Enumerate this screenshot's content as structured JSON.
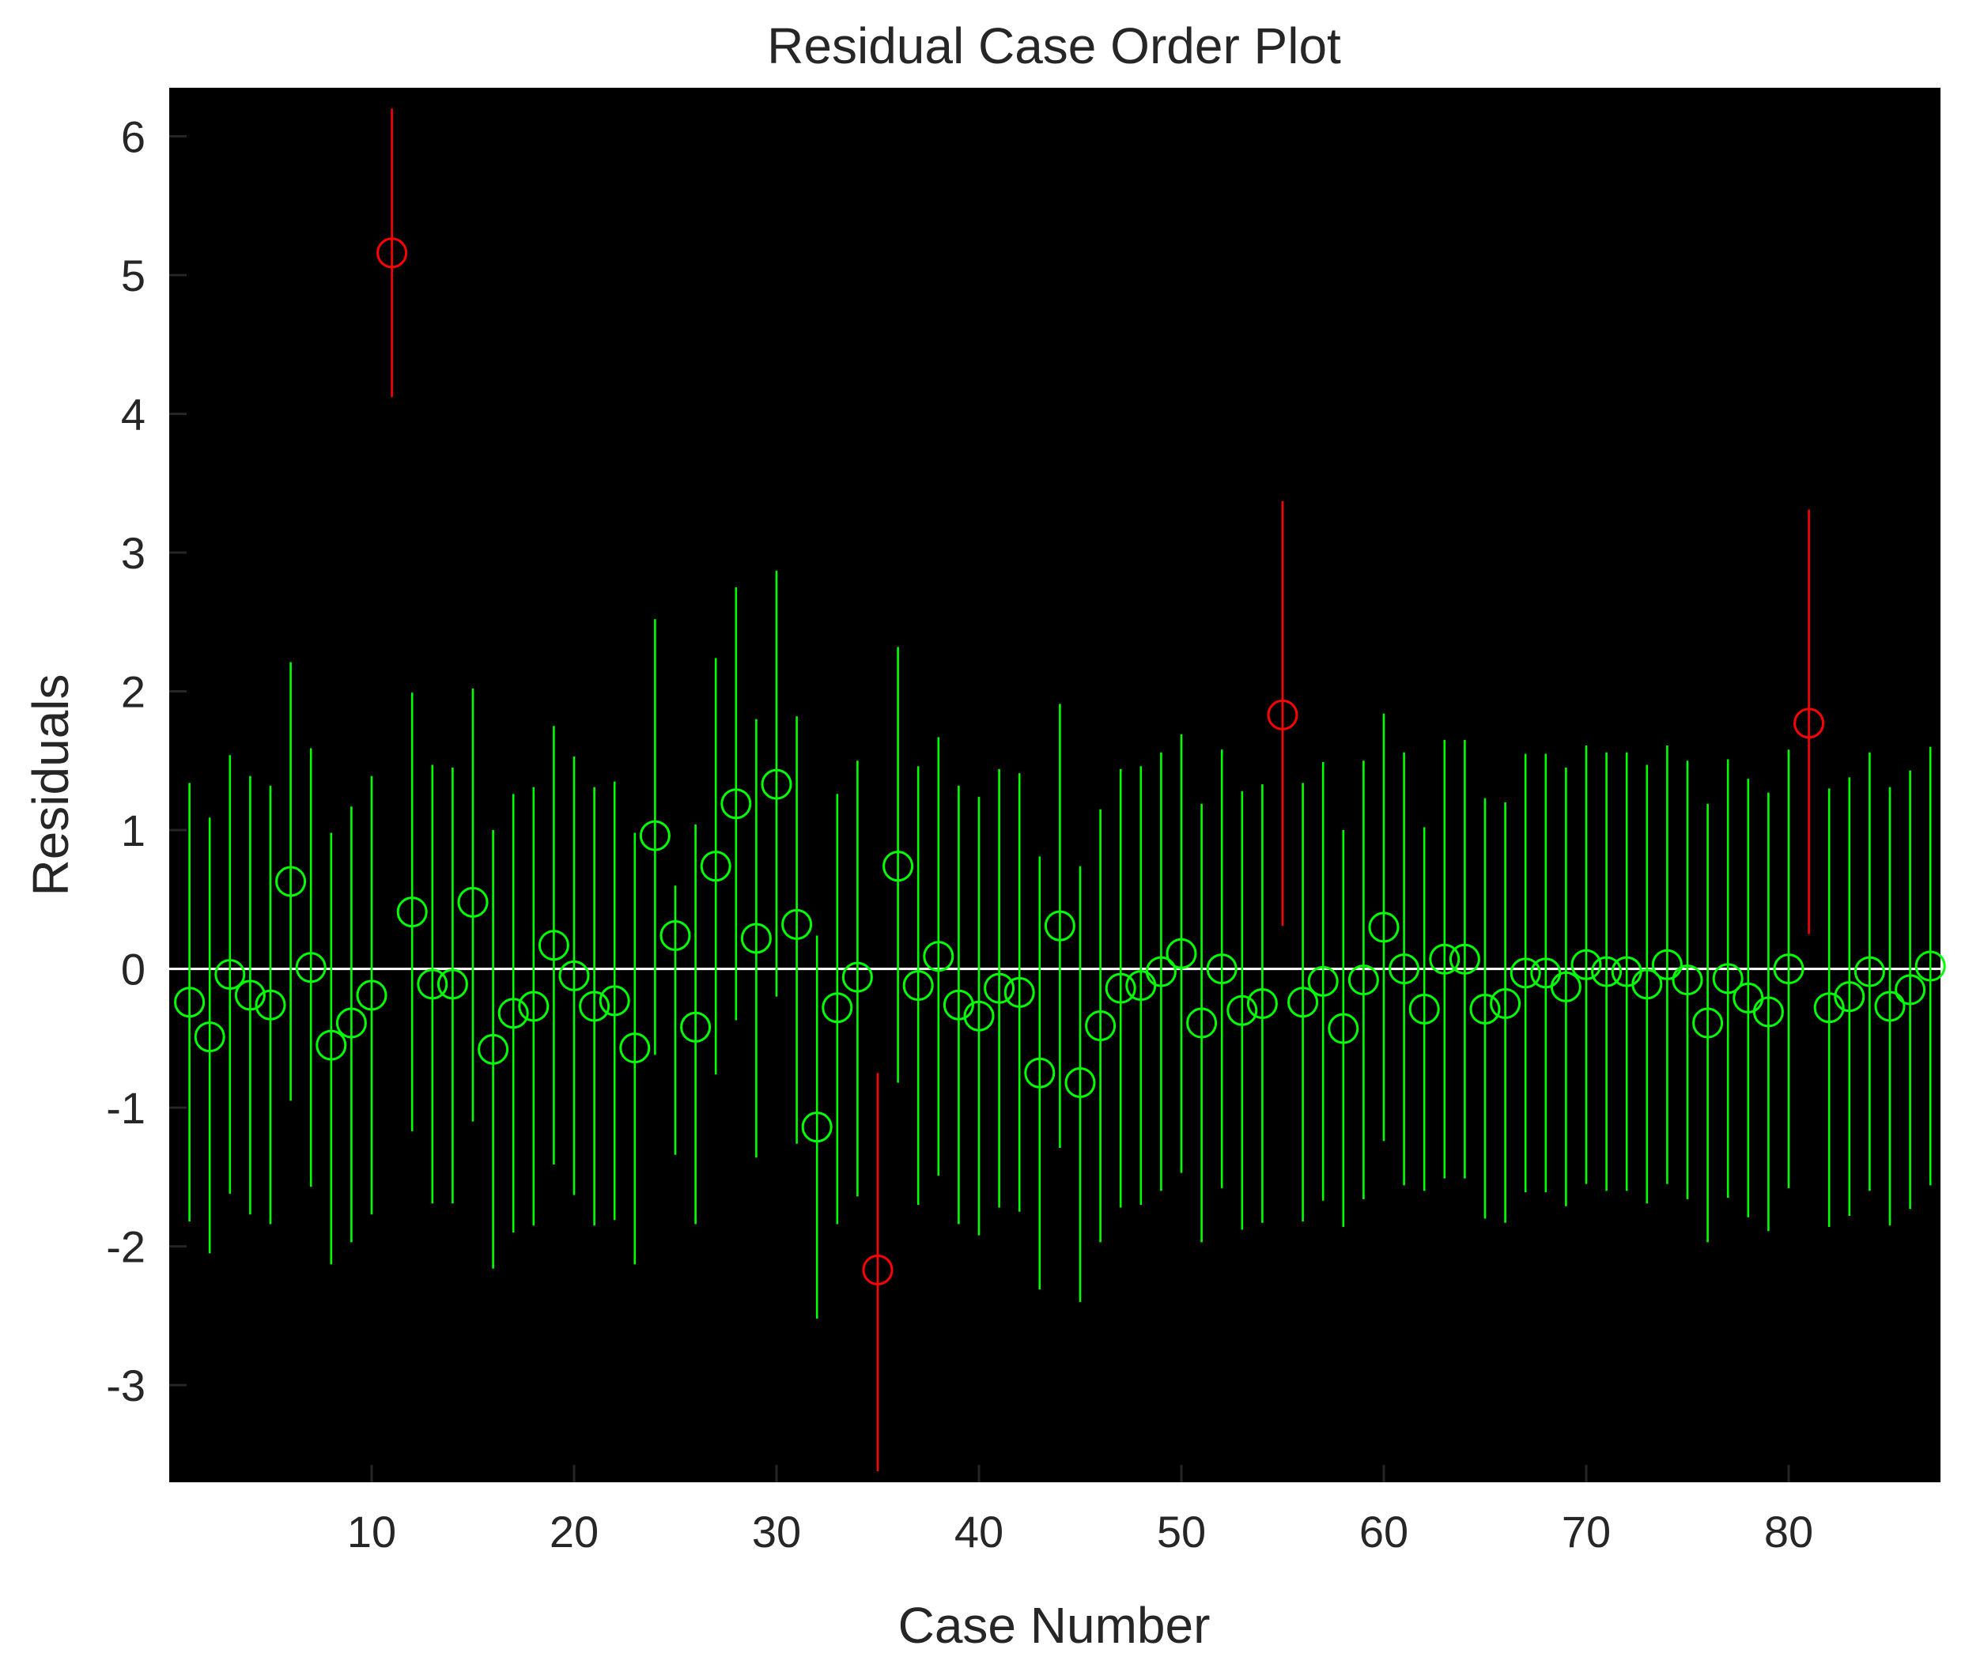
{
  "chart_data": {
    "type": "scatter",
    "title": "Residual Case Order Plot",
    "xlabel": "Case Number",
    "ylabel": "Residuals",
    "xlim": [
      0,
      87.5
    ],
    "ylim": [
      -3.7,
      6.35
    ],
    "xticks": [
      10,
      20,
      30,
      40,
      50,
      60,
      70,
      80
    ],
    "yticks": [
      -3,
      -2,
      -1,
      0,
      1,
      2,
      3,
      4,
      5,
      6
    ],
    "grid": false,
    "background": "#000000",
    "zero_line_color": "#ffffff",
    "normal_color": "#00ff00",
    "outlier_color": "#ff0000",
    "points": [
      {
        "x": 1,
        "y": -0.24,
        "lower": -1.82,
        "upper": 1.34
      },
      {
        "x": 2,
        "y": -0.49,
        "lower": -2.05,
        "upper": 1.09
      },
      {
        "x": 3,
        "y": -0.04,
        "lower": -1.62,
        "upper": 1.54
      },
      {
        "x": 4,
        "y": -0.19,
        "lower": -1.77,
        "upper": 1.39
      },
      {
        "x": 5,
        "y": -0.26,
        "lower": -1.84,
        "upper": 1.32
      },
      {
        "x": 6,
        "y": 0.63,
        "lower": -0.95,
        "upper": 2.21
      },
      {
        "x": 7,
        "y": 0.01,
        "lower": -1.57,
        "upper": 1.59
      },
      {
        "x": 8,
        "y": -0.55,
        "lower": -2.13,
        "upper": 0.98
      },
      {
        "x": 9,
        "y": -0.39,
        "lower": -1.97,
        "upper": 1.17
      },
      {
        "x": 10,
        "y": -0.19,
        "lower": -1.77,
        "upper": 1.39
      },
      {
        "x": 11,
        "y": 5.16,
        "lower": 4.12,
        "upper": 6.2,
        "outlier": true
      },
      {
        "x": 12,
        "y": 0.41,
        "lower": -1.17,
        "upper": 1.99
      },
      {
        "x": 13,
        "y": -0.11,
        "lower": -1.69,
        "upper": 1.47
      },
      {
        "x": 14,
        "y": -0.11,
        "lower": -1.69,
        "upper": 1.45
      },
      {
        "x": 15,
        "y": 0.48,
        "lower": -1.1,
        "upper": 2.02
      },
      {
        "x": 16,
        "y": -0.58,
        "lower": -2.16,
        "upper": 1.0
      },
      {
        "x": 17,
        "y": -0.32,
        "lower": -1.9,
        "upper": 1.26
      },
      {
        "x": 18,
        "y": -0.27,
        "lower": -1.85,
        "upper": 1.31
      },
      {
        "x": 19,
        "y": 0.17,
        "lower": -1.41,
        "upper": 1.75
      },
      {
        "x": 20,
        "y": -0.05,
        "lower": -1.63,
        "upper": 1.53
      },
      {
        "x": 21,
        "y": -0.27,
        "lower": -1.85,
        "upper": 1.31
      },
      {
        "x": 22,
        "y": -0.23,
        "lower": -1.81,
        "upper": 1.35
      },
      {
        "x": 23,
        "y": -0.57,
        "lower": -2.13,
        "upper": 0.98
      },
      {
        "x": 24,
        "y": 0.96,
        "lower": -0.62,
        "upper": 2.52
      },
      {
        "x": 25,
        "y": 0.24,
        "lower": -1.34,
        "upper": 0.6
      },
      {
        "x": 26,
        "y": -0.42,
        "lower": -1.84,
        "upper": 1.04
      },
      {
        "x": 27,
        "y": 0.74,
        "lower": -0.76,
        "upper": 2.24
      },
      {
        "x": 28,
        "y": 1.19,
        "lower": -0.37,
        "upper": 2.75
      },
      {
        "x": 29,
        "y": 0.22,
        "lower": -1.36,
        "upper": 1.8
      },
      {
        "x": 30,
        "y": 1.33,
        "lower": -0.2,
        "upper": 2.87
      },
      {
        "x": 31,
        "y": 0.32,
        "lower": -1.26,
        "upper": 1.82
      },
      {
        "x": 32,
        "y": -1.14,
        "lower": -2.52,
        "upper": 0.24
      },
      {
        "x": 33,
        "y": -0.28,
        "lower": -1.84,
        "upper": 1.26
      },
      {
        "x": 34,
        "y": -0.06,
        "lower": -1.64,
        "upper": 1.5
      },
      {
        "x": 35,
        "y": -2.17,
        "lower": -3.62,
        "upper": -0.75,
        "outlier": true
      },
      {
        "x": 36,
        "y": 0.74,
        "lower": -0.82,
        "upper": 2.32
      },
      {
        "x": 37,
        "y": -0.12,
        "lower": -1.7,
        "upper": 1.46
      },
      {
        "x": 38,
        "y": 0.09,
        "lower": -1.49,
        "upper": 1.67
      },
      {
        "x": 39,
        "y": -0.26,
        "lower": -1.84,
        "upper": 1.32
      },
      {
        "x": 40,
        "y": -0.34,
        "lower": -1.92,
        "upper": 1.24
      },
      {
        "x": 41,
        "y": -0.14,
        "lower": -1.72,
        "upper": 1.44
      },
      {
        "x": 42,
        "y": -0.17,
        "lower": -1.75,
        "upper": 1.41
      },
      {
        "x": 43,
        "y": -0.75,
        "lower": -2.31,
        "upper": 0.81
      },
      {
        "x": 44,
        "y": 0.31,
        "lower": -1.29,
        "upper": 1.91
      },
      {
        "x": 45,
        "y": -0.82,
        "lower": -2.4,
        "upper": 0.74
      },
      {
        "x": 46,
        "y": -0.41,
        "lower": -1.97,
        "upper": 1.15
      },
      {
        "x": 47,
        "y": -0.14,
        "lower": -1.72,
        "upper": 1.44
      },
      {
        "x": 48,
        "y": -0.12,
        "lower": -1.7,
        "upper": 1.46
      },
      {
        "x": 49,
        "y": -0.02,
        "lower": -1.6,
        "upper": 1.56
      },
      {
        "x": 50,
        "y": 0.11,
        "lower": -1.47,
        "upper": 1.69
      },
      {
        "x": 51,
        "y": -0.39,
        "lower": -1.97,
        "upper": 1.19
      },
      {
        "x": 52,
        "y": 0.0,
        "lower": -1.58,
        "upper": 1.58
      },
      {
        "x": 53,
        "y": -0.3,
        "lower": -1.88,
        "upper": 1.28
      },
      {
        "x": 54,
        "y": -0.25,
        "lower": -1.83,
        "upper": 1.33
      },
      {
        "x": 55,
        "y": 1.83,
        "lower": 0.31,
        "upper": 3.37,
        "outlier": true
      },
      {
        "x": 56,
        "y": -0.24,
        "lower": -1.82,
        "upper": 1.34
      },
      {
        "x": 57,
        "y": -0.09,
        "lower": -1.67,
        "upper": 1.49
      },
      {
        "x": 58,
        "y": -0.43,
        "lower": -1.86,
        "upper": 1.0
      },
      {
        "x": 59,
        "y": -0.08,
        "lower": -1.66,
        "upper": 1.5
      },
      {
        "x": 60,
        "y": 0.3,
        "lower": -1.24,
        "upper": 1.84
      },
      {
        "x": 61,
        "y": 0.0,
        "lower": -1.56,
        "upper": 1.56
      },
      {
        "x": 62,
        "y": -0.29,
        "lower": -1.6,
        "upper": 1.02
      },
      {
        "x": 63,
        "y": 0.07,
        "lower": -1.51,
        "upper": 1.65
      },
      {
        "x": 64,
        "y": 0.07,
        "lower": -1.51,
        "upper": 1.65
      },
      {
        "x": 65,
        "y": -0.29,
        "lower": -1.8,
        "upper": 1.23
      },
      {
        "x": 66,
        "y": -0.25,
        "lower": -1.83,
        "upper": 1.2
      },
      {
        "x": 67,
        "y": -0.03,
        "lower": -1.61,
        "upper": 1.55
      },
      {
        "x": 68,
        "y": -0.03,
        "lower": -1.61,
        "upper": 1.55
      },
      {
        "x": 69,
        "y": -0.13,
        "lower": -1.71,
        "upper": 1.45
      },
      {
        "x": 70,
        "y": 0.03,
        "lower": -1.55,
        "upper": 1.61
      },
      {
        "x": 71,
        "y": -0.02,
        "lower": -1.6,
        "upper": 1.56
      },
      {
        "x": 72,
        "y": -0.02,
        "lower": -1.6,
        "upper": 1.56
      },
      {
        "x": 73,
        "y": -0.11,
        "lower": -1.69,
        "upper": 1.47
      },
      {
        "x": 74,
        "y": 0.03,
        "lower": -1.55,
        "upper": 1.61
      },
      {
        "x": 75,
        "y": -0.08,
        "lower": -1.66,
        "upper": 1.5
      },
      {
        "x": 76,
        "y": -0.39,
        "lower": -1.97,
        "upper": 1.19
      },
      {
        "x": 77,
        "y": -0.07,
        "lower": -1.65,
        "upper": 1.51
      },
      {
        "x": 78,
        "y": -0.21,
        "lower": -1.79,
        "upper": 1.37
      },
      {
        "x": 79,
        "y": -0.31,
        "lower": -1.89,
        "upper": 1.27
      },
      {
        "x": 80,
        "y": 0.0,
        "lower": -1.58,
        "upper": 1.58
      },
      {
        "x": 81,
        "y": 1.77,
        "lower": 0.25,
        "upper": 3.31,
        "outlier": true
      },
      {
        "x": 82,
        "y": -0.28,
        "lower": -1.86,
        "upper": 1.3
      },
      {
        "x": 83,
        "y": -0.2,
        "lower": -1.78,
        "upper": 1.38
      },
      {
        "x": 84,
        "y": -0.02,
        "lower": -1.6,
        "upper": 1.56
      },
      {
        "x": 85,
        "y": -0.27,
        "lower": -1.85,
        "upper": 1.31
      },
      {
        "x": 86,
        "y": -0.15,
        "lower": -1.73,
        "upper": 1.43
      },
      {
        "x": 87,
        "y": 0.02,
        "lower": -1.56,
        "upper": 1.6
      }
    ]
  }
}
